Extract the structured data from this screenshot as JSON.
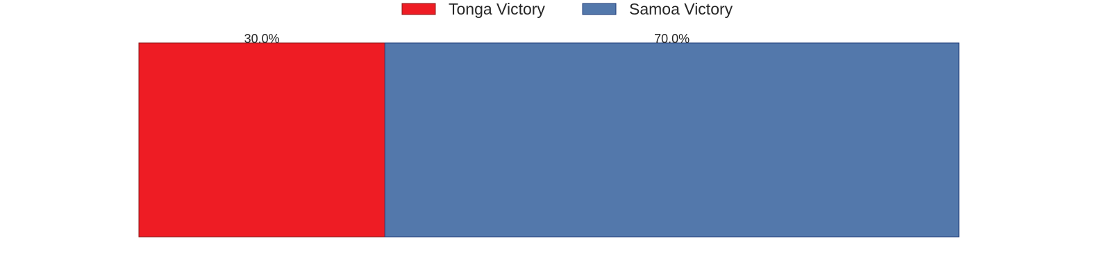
{
  "chart_data": {
    "type": "bar",
    "orientation": "horizontal",
    "stacked": true,
    "percent": true,
    "legend_position": "top-center",
    "grid": false,
    "axes_visible": false,
    "xlim": [
      0,
      100
    ],
    "series": [
      {
        "name": "Tonga Victory",
        "value": 30.0,
        "label": "30.0%",
        "color": "#ee1c24",
        "edge": "#8b1a1a"
      },
      {
        "name": "Samoa Victory",
        "value": 70.0,
        "label": "70.0%",
        "color": "#5378ab",
        "edge": "#1f3c7a"
      }
    ]
  }
}
